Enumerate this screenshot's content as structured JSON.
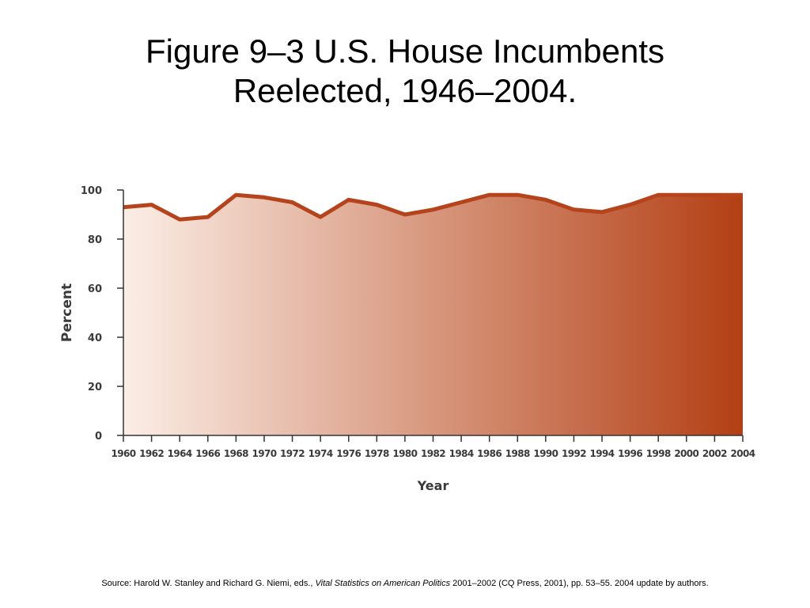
{
  "slide": {
    "title_line1": "Figure 9–3 U.S. House Incumbents",
    "title_line2": "Reelected, 1946–2004."
  },
  "source": {
    "prefix": "Source: Harold W. Stanley and Richard G. Niemi, eds., ",
    "book_title": "Vital Statistics on American Politics",
    "suffix": " 2001–2002 (CQ Press, 2001), pp. 53–55. 2004 update by authors."
  },
  "colors": {
    "line": "#b5441c",
    "fill_light": "#fbeee6",
    "fill_dark": "#b33f14",
    "axis": "#333333"
  },
  "chart_data": {
    "type": "area",
    "title": "",
    "xlabel": "Year",
    "ylabel": "Percent",
    "xlim": [
      1960,
      2004
    ],
    "ylim": [
      0,
      100
    ],
    "x_ticks": [
      1960,
      1962,
      1964,
      1966,
      1968,
      1970,
      1972,
      1974,
      1976,
      1978,
      1980,
      1982,
      1984,
      1986,
      1988,
      1990,
      1992,
      1994,
      1996,
      1998,
      2000,
      2002,
      2004
    ],
    "y_ticks": [
      0,
      20,
      40,
      60,
      80,
      100
    ],
    "grid": false,
    "legend": "none",
    "series": [
      {
        "x": [
          1960,
          1962,
          1964,
          1966,
          1968,
          1970,
          1972,
          1974,
          1976,
          1978,
          1980,
          1982,
          1984,
          1986,
          1988,
          1990,
          1992,
          1994,
          1996,
          1998,
          2000,
          2002,
          2004
        ],
        "values": [
          93,
          94,
          88,
          89,
          98,
          97,
          95,
          89,
          96,
          94,
          90,
          92,
          95,
          98,
          98,
          96,
          92,
          91,
          94,
          98,
          98,
          98,
          98
        ]
      }
    ]
  }
}
